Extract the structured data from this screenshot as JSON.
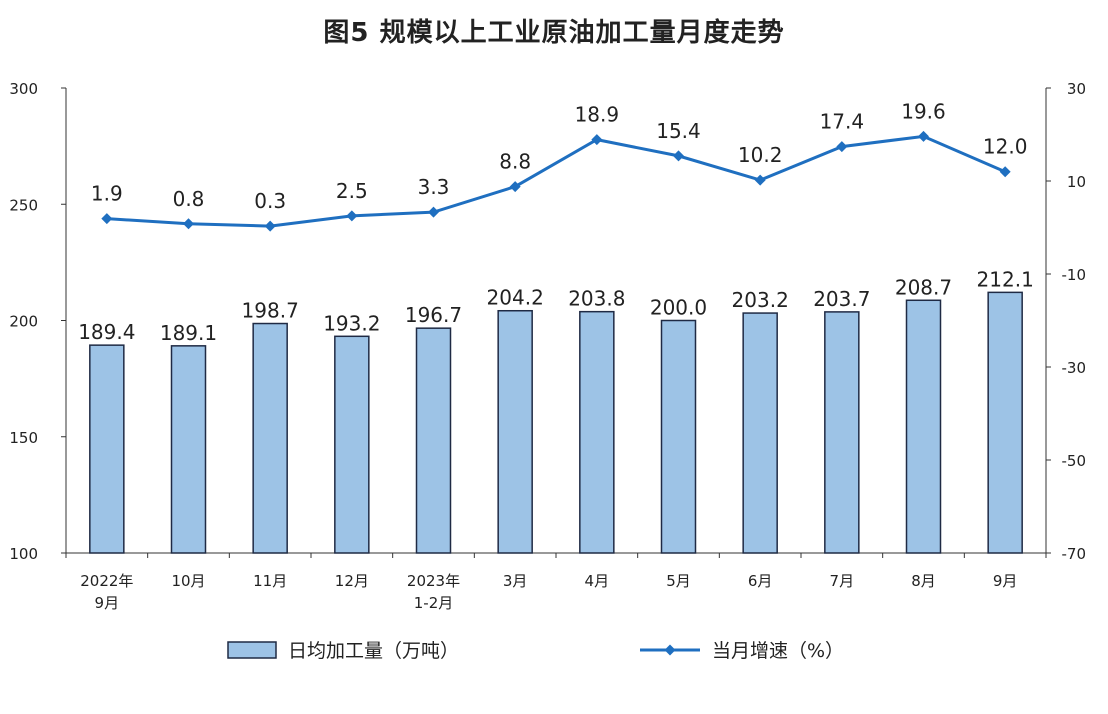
{
  "title": "图5  规模以上工业原油加工量月度走势",
  "chart_data": {
    "type": "bar+line",
    "categories": [
      [
        "2022年",
        "9月"
      ],
      [
        "10月"
      ],
      [
        "11月"
      ],
      [
        "12月"
      ],
      [
        "2023年",
        "1-2月"
      ],
      [
        "3月"
      ],
      [
        "4月"
      ],
      [
        "5月"
      ],
      [
        "6月"
      ],
      [
        "7月"
      ],
      [
        "8月"
      ],
      [
        "9月"
      ]
    ],
    "bar_series": {
      "name": "日均加工量（万吨）",
      "values": [
        189.4,
        189.1,
        198.7,
        193.2,
        196.7,
        204.2,
        203.8,
        200.0,
        203.2,
        203.7,
        208.7,
        212.1
      ],
      "labels": [
        "189.4",
        "189.1",
        "198.7",
        "193.2",
        "196.7",
        "204.2",
        "203.8",
        "200.0",
        "203.2",
        "203.7",
        "208.7",
        "212.1"
      ],
      "color": "#9DC3E6",
      "border": "#1F2A44"
    },
    "line_series": {
      "name": "当月增速（%）",
      "values": [
        1.9,
        0.8,
        0.3,
        2.5,
        3.3,
        8.8,
        18.9,
        15.4,
        10.2,
        17.4,
        19.6,
        12.0
      ],
      "labels": [
        "1.9",
        "0.8",
        "0.3",
        "2.5",
        "3.3",
        "8.8",
        "18.9",
        "15.4",
        "10.2",
        "17.4",
        "19.6",
        "12.0"
      ],
      "color": "#1F6FC0"
    },
    "y_left": {
      "min": 100,
      "max": 300,
      "ticks": [
        100,
        150,
        200,
        250,
        300
      ]
    },
    "y_right": {
      "min": -70,
      "max": 30,
      "ticks": [
        -70,
        -50,
        -30,
        -10,
        10,
        30
      ]
    },
    "legend_position": "bottom"
  }
}
